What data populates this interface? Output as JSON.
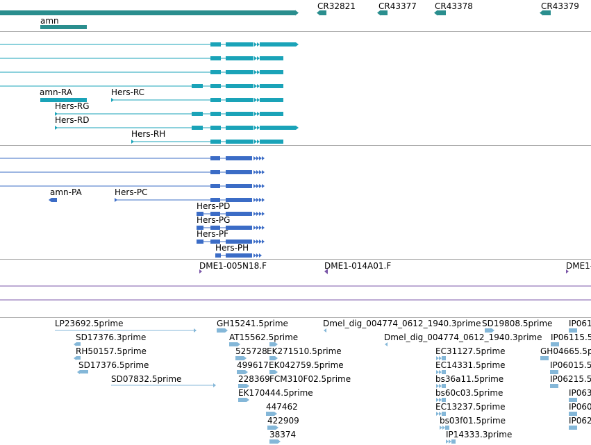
{
  "colors": {
    "gene": "#2a8e8e",
    "transcript": "#1aa3b8",
    "protein": "#3b6cc6",
    "clone": "#7b57a8",
    "est": "#84b7d8",
    "separator": "#a8a8a8"
  },
  "gene_track": {
    "labels": [
      "CR32821",
      "CR43377",
      "CR43378",
      "CR43379",
      "amn"
    ]
  },
  "transcript_track": {
    "labels": [
      "amn-RA",
      "Hers-RC",
      "Hers-RG",
      "Hers-RD",
      "Hers-RH"
    ]
  },
  "protein_track": {
    "labels": [
      "amn-PA",
      "Hers-PC",
      "Hers-PD",
      "Hers-PG",
      "Hers-PF",
      "Hers-PH"
    ]
  },
  "clone_track": {
    "labels": [
      "DME1-005N18.F",
      "DME1-014A01.F",
      "DME1-"
    ]
  },
  "est_track": {
    "labels": [
      "LP23692.5prime",
      "SD17376.3prime",
      "RH50157.5prime",
      "SD17376.5prime",
      "SD07832.5prime",
      "GH15241.5prime",
      "AT15562.5prime",
      "525728",
      "EK271510.5prime",
      "499617",
      "EK042759.5prime",
      "228369",
      "FCM310F02.5prime",
      "EK170444.5prime",
      "447462",
      "422909",
      "38374",
      "Dmel_dig_004774_0612_1940.3prime",
      "Dmel_dig_004774_0612_1940.3prime",
      "SD19808.5prime",
      "EC31127.5prime",
      "EC14331.5prime",
      "bs36a11.5prime",
      "bs60c03.5prime",
      "EC13237.5prime",
      "bs03f01.5prime",
      "IP14333.3prime",
      "IP061",
      "IP06115.5",
      "GH04665.5p",
      "IP06015.5",
      "IP06215.5",
      "IP063",
      "IP060",
      "IP062"
    ]
  }
}
